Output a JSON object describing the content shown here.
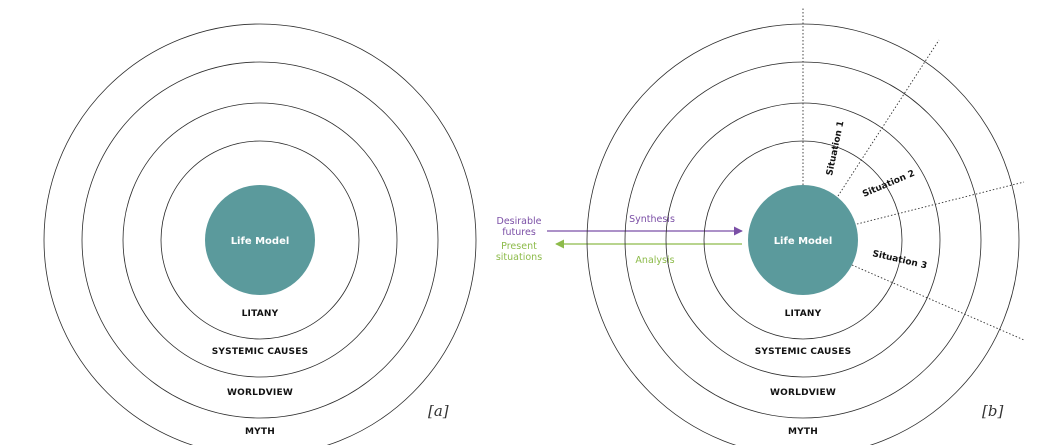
{
  "panel_a": {
    "core_label": "Life Model",
    "layers": [
      "LITANY",
      "SYSTEMIC CAUSES",
      "WORLDVIEW",
      "MYTH"
    ],
    "panel_label": "[a]"
  },
  "panel_b": {
    "core_label": "Life Model",
    "layers": [
      "LITANY",
      "SYSTEMIC CAUSES",
      "WORLDVIEW",
      "MYTH"
    ],
    "situations": [
      "Situation 1",
      "Situation 2",
      "Situation 3"
    ],
    "panel_label": "[b]"
  },
  "flows": {
    "desirable_futures": [
      "Desirable",
      "futures"
    ],
    "present_situations": [
      "Present",
      "situations"
    ],
    "synthesis": "Synthesis",
    "analysis": "Analysis"
  },
  "colors": {
    "core": "#5b9a9c",
    "synthesis": "#7b4fa6",
    "analysis": "#8dbb4a"
  }
}
